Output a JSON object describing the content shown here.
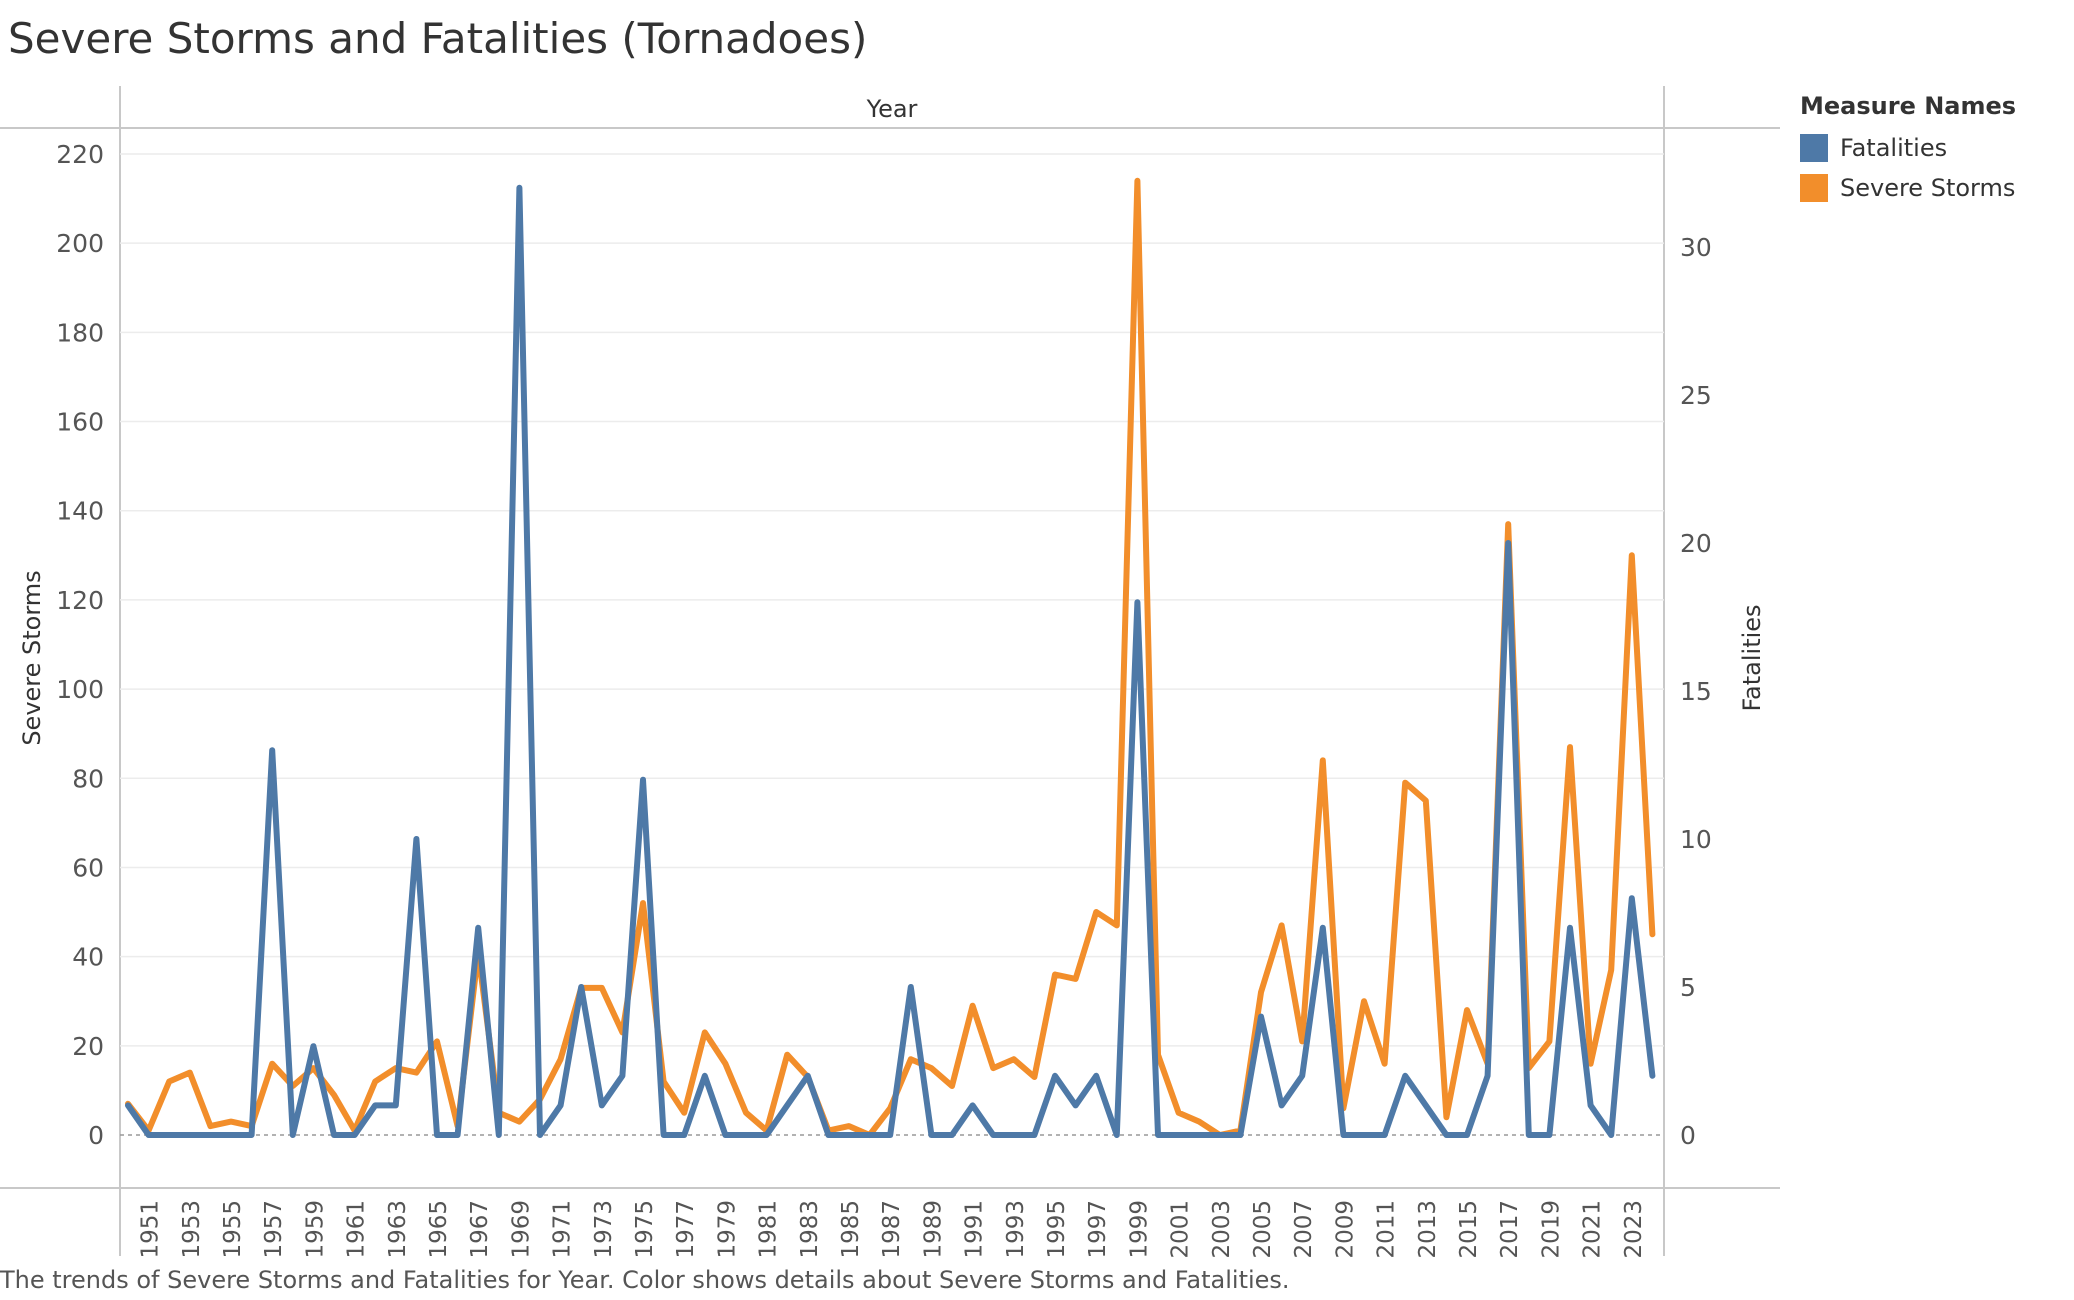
{
  "title": "Severe Storms and Fatalities (Tornadoes)",
  "caption": "The trends of Severe Storms and Fatalities for Year.  Color shows details about Severe Storms and Fatalities.",
  "legend": {
    "title": "Measure Names",
    "items": [
      {
        "label": "Fatalities",
        "color": "#4e79a7"
      },
      {
        "label": "Severe Storms",
        "color": "#f28e2b"
      }
    ]
  },
  "chart_data": {
    "type": "line",
    "column_header": "Year",
    "x": [
      1950,
      1951,
      1952,
      1953,
      1954,
      1955,
      1956,
      1957,
      1958,
      1959,
      1960,
      1961,
      1962,
      1963,
      1964,
      1965,
      1966,
      1967,
      1968,
      1969,
      1970,
      1971,
      1972,
      1973,
      1974,
      1975,
      1976,
      1977,
      1978,
      1979,
      1980,
      1981,
      1982,
      1983,
      1984,
      1985,
      1986,
      1987,
      1988,
      1989,
      1990,
      1991,
      1992,
      1993,
      1994,
      1995,
      1996,
      1997,
      1998,
      1999,
      2000,
      2001,
      2002,
      2003,
      2004,
      2005,
      2006,
      2007,
      2008,
      2009,
      2010,
      2011,
      2012,
      2013,
      2014,
      2015,
      2016,
      2017,
      2018,
      2019,
      2020,
      2021,
      2022,
      2023,
      2024
    ],
    "x_tick_labels": [
      "1951",
      "1953",
      "1955",
      "1957",
      "1959",
      "1961",
      "1963",
      "1965",
      "1967",
      "1969",
      "1971",
      "1973",
      "1975",
      "1977",
      "1979",
      "1981",
      "1983",
      "1985",
      "1987",
      "1989",
      "1991",
      "1993",
      "1995",
      "1997",
      "1999",
      "2001",
      "2003",
      "2005",
      "2007",
      "2009",
      "2011",
      "2013",
      "2015",
      "2017",
      "2019",
      "2021",
      "2023"
    ],
    "series": [
      {
        "name": "Severe Storms",
        "axis": "left",
        "color": "#f28e2b",
        "values": [
          7,
          1,
          12,
          14,
          2,
          3,
          2,
          16,
          11,
          15,
          9,
          1,
          12,
          15,
          14,
          21,
          2,
          41,
          5,
          3,
          8,
          17,
          33,
          33,
          23,
          52,
          12,
          5,
          23,
          16,
          5,
          1,
          18,
          13,
          1,
          2,
          0,
          6,
          17,
          15,
          11,
          29,
          15,
          17,
          13,
          36,
          35,
          50,
          47,
          214,
          18,
          5,
          3,
          0,
          1,
          32,
          47,
          21,
          84,
          6,
          30,
          16,
          79,
          75,
          4,
          28,
          16,
          137,
          15,
          21,
          87,
          16,
          37,
          130,
          45
        ]
      },
      {
        "name": "Fatalities",
        "axis": "right",
        "color": "#4e79a7",
        "values": [
          1,
          0,
          0,
          0,
          0,
          0,
          0,
          13,
          0,
          3,
          0,
          0,
          1,
          1,
          10,
          0,
          0,
          7,
          0,
          32,
          0,
          1,
          5,
          1,
          2,
          12,
          0,
          0,
          2,
          0,
          0,
          0,
          1,
          2,
          0,
          0,
          0,
          0,
          5,
          0,
          0,
          1,
          0,
          0,
          0,
          2,
          1,
          2,
          0,
          18,
          0,
          0,
          0,
          0,
          0,
          4,
          1,
          2,
          7,
          0,
          0,
          0,
          2,
          1,
          0,
          0,
          2,
          20,
          0,
          0,
          7,
          1,
          0,
          8,
          2
        ]
      }
    ],
    "left_axis": {
      "label": "Severe Storms",
      "ylim": [
        0,
        220
      ],
      "ticks": [
        0,
        20,
        40,
        60,
        80,
        100,
        120,
        140,
        160,
        180,
        200,
        220
      ]
    },
    "right_axis": {
      "label": "Fatalities",
      "ylim": [
        0,
        32
      ],
      "ticks": [
        0,
        5,
        10,
        15,
        20,
        25,
        30
      ]
    },
    "grid": true,
    "legend_position": "right"
  }
}
